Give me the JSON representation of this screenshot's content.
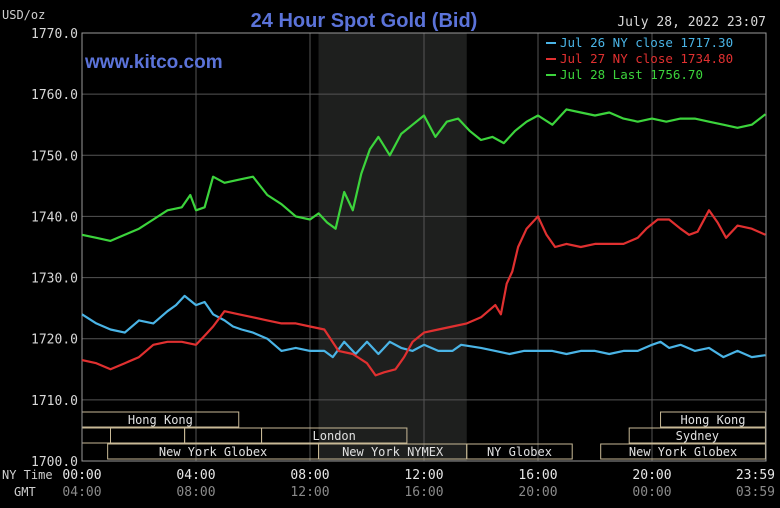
{
  "chart_data": {
    "type": "line",
    "title": "24 Hour Spot Gold (Bid)",
    "watermark": "www.kitco.com",
    "timestamp": "July 28, 2022 23:07",
    "ylabel": "USD/oz",
    "ylim": [
      1700,
      1770
    ],
    "y_ticks": [
      "1770.0",
      "1760.0",
      "1750.0",
      "1740.0",
      "1730.0",
      "1720.0",
      "1710.0",
      "1700.0"
    ],
    "xlim": [
      0,
      24
    ],
    "x_row_labels": {
      "ny": "NY Time",
      "gmt": "GMT"
    },
    "x_ticks_ny": [
      "00:00",
      "04:00",
      "08:00",
      "12:00",
      "16:00",
      "20:00",
      "23:59"
    ],
    "x_ticks_gmt": [
      "04:00",
      "08:00",
      "12:00",
      "16:00",
      "20:00",
      "00:00",
      "03:59"
    ],
    "grid": true,
    "legend_position": "top-right",
    "shaded_region": [
      8.3,
      13.5
    ],
    "series": [
      {
        "name": "Jul 26 NY close 1717.30",
        "color": "#4ab4e6",
        "x": [
          0,
          0.5,
          1,
          1.5,
          2,
          2.5,
          3,
          3.3,
          3.6,
          4,
          4.3,
          4.6,
          5,
          5.3,
          5.6,
          6,
          6.5,
          7,
          7.5,
          8,
          8.5,
          8.8,
          9.2,
          9.6,
          10,
          10.4,
          10.8,
          11.2,
          11.6,
          12,
          12.5,
          13,
          13.3,
          14,
          14.5,
          15,
          15.5,
          16,
          16.5,
          17,
          17.5,
          18,
          18.5,
          19,
          19.5,
          20,
          20.3,
          20.6,
          21,
          21.5,
          22,
          22.5,
          23,
          23.5,
          23.98
        ],
        "y": [
          1724,
          1722.5,
          1721.5,
          1721,
          1723,
          1722.5,
          1724.5,
          1725.5,
          1727,
          1725.5,
          1726,
          1724,
          1723,
          1722,
          1721.5,
          1721,
          1720,
          1718,
          1718.5,
          1718,
          1718,
          1717,
          1719.5,
          1717.5,
          1719.5,
          1717.5,
          1719.5,
          1718.5,
          1718,
          1719,
          1718,
          1718,
          1719,
          1718.5,
          1718,
          1717.5,
          1718,
          1718,
          1718,
          1717.5,
          1718,
          1718,
          1717.5,
          1718,
          1718,
          1719,
          1719.5,
          1718.5,
          1719,
          1718,
          1718.5,
          1717,
          1718,
          1717,
          1717.3
        ]
      },
      {
        "name": "Jul 27 NY close 1734.80",
        "color": "#e03030",
        "x": [
          0,
          0.5,
          1,
          1.5,
          2,
          2.5,
          3,
          3.5,
          4,
          4.3,
          4.6,
          5,
          5.5,
          6,
          6.5,
          7,
          7.5,
          8,
          8.5,
          9,
          9.5,
          10,
          10.3,
          10.6,
          11,
          11.3,
          11.6,
          12,
          12.5,
          13,
          13.5,
          14,
          14.5,
          14.7,
          14.9,
          15.1,
          15.3,
          15.6,
          16,
          16.3,
          16.6,
          17,
          17.5,
          18,
          18.5,
          19,
          19.5,
          19.8,
          20.2,
          20.6,
          21,
          21.3,
          21.6,
          22,
          22.3,
          22.6,
          23,
          23.5,
          23.98
        ],
        "y": [
          1716.5,
          1716,
          1715,
          1716,
          1717,
          1719,
          1719.5,
          1719.5,
          1719,
          1720.5,
          1722,
          1724.5,
          1724,
          1723.5,
          1723,
          1722.5,
          1722.5,
          1722,
          1721.5,
          1718,
          1717.5,
          1716,
          1714,
          1714.5,
          1715,
          1717,
          1719.5,
          1721,
          1721.5,
          1722,
          1722.5,
          1723.5,
          1725.5,
          1724,
          1729,
          1731,
          1735,
          1738,
          1740,
          1737,
          1735,
          1735.5,
          1735,
          1735.5,
          1735.5,
          1735.5,
          1736.5,
          1738,
          1739.5,
          1739.5,
          1738,
          1737,
          1737.5,
          1741,
          1739,
          1736.5,
          1738.5,
          1738,
          1737
        ]
      },
      {
        "name": "Jul 28 Last 1756.70",
        "color": "#3cd43c",
        "x": [
          0,
          0.5,
          1,
          1.5,
          2,
          2.5,
          3,
          3.5,
          3.8,
          4,
          4.3,
          4.6,
          5,
          5.5,
          6,
          6.5,
          7,
          7.5,
          8,
          8.3,
          8.6,
          8.9,
          9.2,
          9.5,
          9.8,
          10.1,
          10.4,
          10.8,
          11.2,
          11.6,
          12,
          12.4,
          12.8,
          13.2,
          13.6,
          14,
          14.4,
          14.8,
          15.2,
          15.6,
          16,
          16.5,
          17,
          17.5,
          18,
          18.5,
          19,
          19.5,
          20,
          20.5,
          21,
          21.5,
          22,
          22.5,
          23,
          23.5,
          23.98
        ],
        "y": [
          1737,
          1736.5,
          1736,
          1737,
          1738,
          1739.5,
          1741,
          1741.5,
          1743.5,
          1741,
          1741.5,
          1746.5,
          1745.5,
          1746,
          1746.5,
          1743.5,
          1742,
          1740,
          1739.5,
          1740.5,
          1739,
          1738,
          1744,
          1741,
          1747,
          1751,
          1753,
          1750,
          1753.5,
          1755,
          1756.5,
          1753,
          1755.5,
          1756,
          1754,
          1752.5,
          1753,
          1752,
          1754,
          1755.5,
          1756.5,
          1755,
          1757.5,
          1757,
          1756.5,
          1757,
          1756,
          1755.5,
          1756,
          1755.5,
          1756,
          1756,
          1755.5,
          1755,
          1754.5,
          1755,
          1756.7
        ]
      }
    ],
    "sessions": [
      {
        "label": "Hong Kong",
        "row": 0,
        "start": 0,
        "end": 5.5
      },
      {
        "label": "Hong Kong",
        "row": 0,
        "start": 20.3,
        "end": 23.98
      },
      {
        "label": "",
        "row": 1,
        "start": 0,
        "end": 1
      },
      {
        "label": "",
        "row": 1,
        "start": 1,
        "end": 3.6
      },
      {
        "label": "",
        "row": 1,
        "start": 3.6,
        "end": 6.3
      },
      {
        "label": "London",
        "row": 1,
        "start": 6.3,
        "end": 11.4
      },
      {
        "label": "Sydney",
        "row": 1,
        "start": 19.2,
        "end": 23.98
      },
      {
        "label": "New York Globex",
        "row": 2,
        "start": 0.9,
        "end": 8.3
      },
      {
        "label": "New York NYMEX",
        "row": 2,
        "start": 8.3,
        "end": 13.5
      },
      {
        "label": "NY Globex",
        "row": 2,
        "start": 13.5,
        "end": 17.2
      },
      {
        "label": "New York Globex",
        "row": 2,
        "start": 18.2,
        "end": 23.98
      }
    ]
  }
}
